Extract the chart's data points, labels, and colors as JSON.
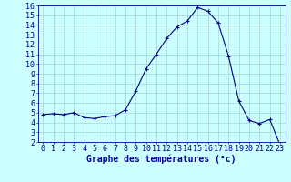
{
  "x": [
    0,
    1,
    2,
    3,
    4,
    5,
    6,
    7,
    8,
    9,
    10,
    11,
    12,
    13,
    14,
    15,
    16,
    17,
    18,
    19,
    20,
    21,
    22,
    23
  ],
  "y": [
    4.8,
    4.9,
    4.8,
    5.0,
    4.5,
    4.4,
    4.6,
    4.7,
    5.3,
    7.2,
    9.5,
    11.0,
    12.6,
    13.8,
    14.4,
    15.8,
    15.4,
    14.2,
    10.8,
    6.2,
    4.2,
    3.9,
    4.3,
    1.7
  ],
  "line_color": "#00008B",
  "marker": "+",
  "marker_color": "#00008B",
  "bg_color": "#CCFFFF",
  "grid_color": "#99CCCC",
  "xlabel": "Graphe des températures (°c)",
  "xlabel_color": "#00008B",
  "xlabel_fontsize": 7,
  "tick_color": "#00008B",
  "tick_fontsize": 6,
  "ylim": [
    2,
    16
  ],
  "xlim": [
    -0.5,
    23.5
  ],
  "yticks": [
    2,
    3,
    4,
    5,
    6,
    7,
    8,
    9,
    10,
    11,
    12,
    13,
    14,
    15,
    16
  ],
  "xticks": [
    0,
    1,
    2,
    3,
    4,
    5,
    6,
    7,
    8,
    9,
    10,
    11,
    12,
    13,
    14,
    15,
    16,
    17,
    18,
    19,
    20,
    21,
    22,
    23
  ]
}
